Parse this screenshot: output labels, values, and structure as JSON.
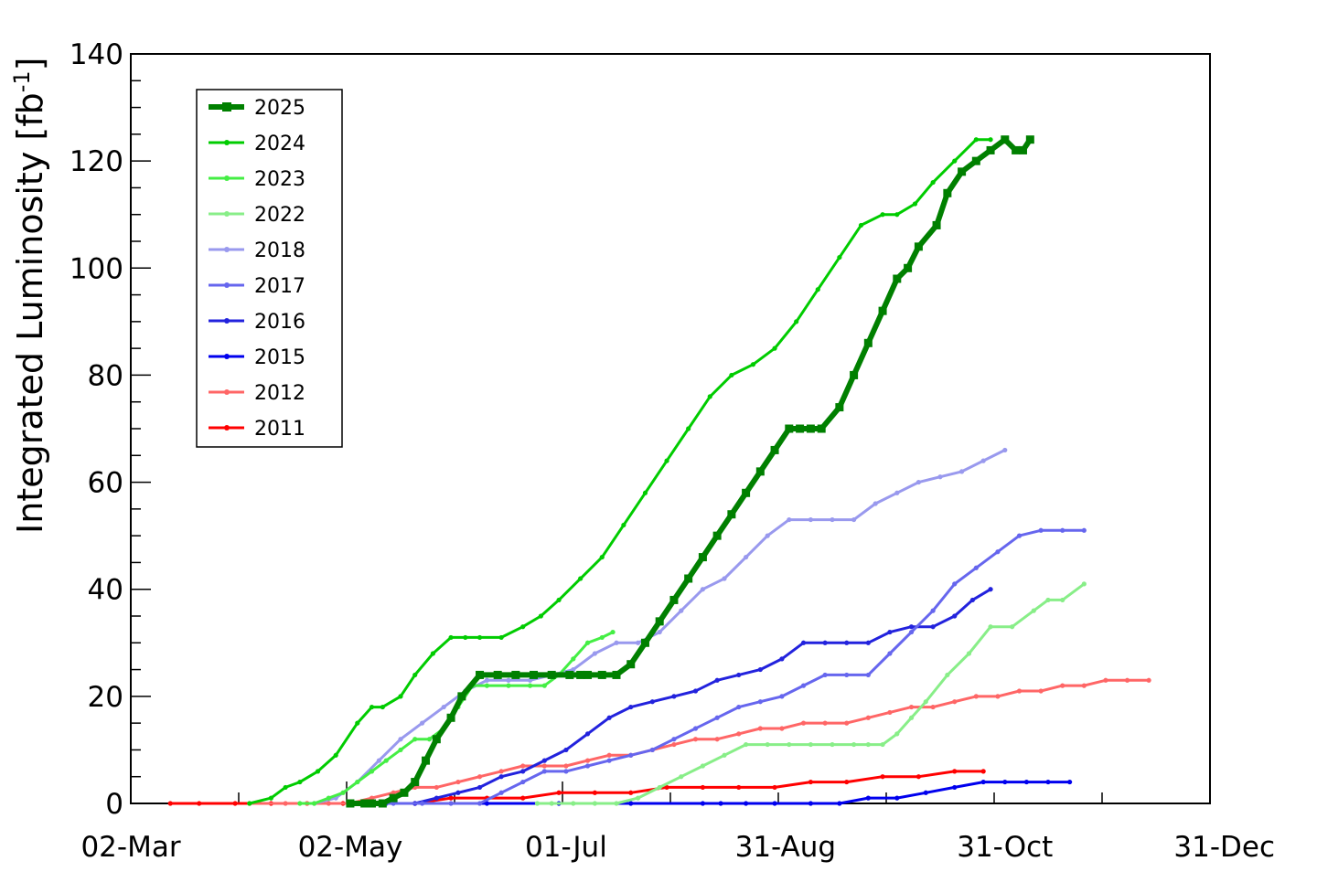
{
  "chart_data": {
    "type": "line",
    "title": "",
    "xlabel": "",
    "ylabel": "Integrated Luminosity [fb",
    "ylabel_sup": "-1",
    "ylabel_close": "]",
    "x_tick_labels": [
      "02-Mar",
      "02-May",
      "01-Jul",
      "31-Aug",
      "31-Oct",
      "31-Dec"
    ],
    "x_tick_days": [
      61,
      122,
      182,
      243,
      304,
      365
    ],
    "xlim_days": [
      61,
      361
    ],
    "y_tick_labels": [
      "0",
      "20",
      "40",
      "60",
      "80",
      "100",
      "120",
      "140"
    ],
    "ylim": [
      0,
      140
    ],
    "grid": false,
    "legend_position": "top-left",
    "series": [
      {
        "name": "2025",
        "color": "#008000",
        "width": 6,
        "x": [
          122,
          126,
          128,
          131,
          134,
          137,
          140,
          143,
          146,
          150,
          153,
          158,
          163,
          168,
          173,
          178,
          183,
          186,
          188,
          192,
          196,
          200,
          204,
          208,
          212,
          216,
          220,
          224,
          228,
          232,
          236,
          240,
          244,
          247,
          250,
          253,
          258,
          262,
          266,
          270,
          274,
          277,
          280,
          285,
          288,
          292,
          296,
          300,
          304,
          307,
          309,
          311
        ],
        "y": [
          0,
          0,
          0,
          0,
          1,
          2,
          4,
          8,
          12,
          16,
          20,
          24,
          24,
          24,
          24,
          24,
          24,
          24,
          24,
          24,
          24,
          26,
          30,
          34,
          38,
          42,
          46,
          50,
          54,
          58,
          62,
          66,
          70,
          70,
          70,
          70,
          74,
          80,
          86,
          92,
          98,
          100,
          104,
          108,
          114,
          118,
          120,
          122,
          124,
          122,
          122,
          124
        ]
      },
      {
        "name": "2024",
        "color": "#00cc00",
        "width": 3,
        "x": [
          94,
          100,
          104,
          108,
          113,
          118,
          124,
          128,
          131,
          136,
          140,
          145,
          150,
          154,
          158,
          164,
          170,
          175,
          180,
          186,
          192,
          198,
          204,
          210,
          216,
          222,
          228,
          234,
          240,
          246,
          252,
          258,
          264,
          270,
          274,
          279,
          284,
          290,
          296,
          300
        ],
        "y": [
          0,
          1,
          3,
          4,
          6,
          9,
          15,
          18,
          18,
          20,
          24,
          28,
          31,
          31,
          31,
          31,
          33,
          35,
          38,
          42,
          46,
          52,
          58,
          64,
          70,
          76,
          80,
          82,
          85,
          90,
          96,
          102,
          108,
          110,
          110,
          112,
          116,
          120,
          124,
          124
        ]
      },
      {
        "name": "2023",
        "color": "#44ee44",
        "width": 3,
        "x": [
          108,
          112,
          116,
          120,
          124,
          128,
          132,
          136,
          140,
          144,
          148,
          152,
          156,
          160,
          166,
          172,
          176,
          180,
          184,
          188,
          192,
          195
        ],
        "y": [
          0,
          0,
          1,
          2,
          4,
          6,
          8,
          10,
          12,
          12,
          14,
          18,
          22,
          22,
          22,
          22,
          22,
          24,
          27,
          30,
          31,
          32
        ]
      },
      {
        "name": "2022",
        "color": "#88ee88",
        "width": 3,
        "x": [
          174,
          178,
          184,
          190,
          196,
          202,
          208,
          214,
          220,
          226,
          232,
          238,
          244,
          250,
          256,
          262,
          266,
          270,
          274,
          278,
          282,
          288,
          294,
          300,
          306,
          312,
          316,
          320,
          326
        ],
        "y": [
          0,
          0,
          0,
          0,
          0,
          1,
          3,
          5,
          7,
          9,
          11,
          11,
          11,
          11,
          11,
          11,
          11,
          11,
          13,
          16,
          19,
          24,
          28,
          33,
          33,
          36,
          38,
          38,
          41
        ]
      },
      {
        "name": "2018",
        "color": "#9999ee",
        "width": 3,
        "x": [
          112,
          118,
          124,
          130,
          136,
          142,
          148,
          154,
          160,
          166,
          172,
          178,
          184,
          190,
          196,
          202,
          208,
          214,
          220,
          226,
          232,
          238,
          244,
          250,
          256,
          262,
          268,
          274,
          280,
          286,
          292,
          298,
          304
        ],
        "y": [
          0,
          1,
          4,
          8,
          12,
          15,
          18,
          21,
          23,
          23,
          23,
          24,
          25,
          28,
          30,
          30,
          32,
          36,
          40,
          42,
          46,
          50,
          53,
          53,
          53,
          53,
          56,
          58,
          60,
          61,
          62,
          64,
          66
        ]
      },
      {
        "name": "2017",
        "color": "#6666ee",
        "width": 3,
        "x": [
          126,
          134,
          142,
          150,
          158,
          164,
          170,
          176,
          182,
          188,
          194,
          200,
          206,
          212,
          218,
          224,
          230,
          236,
          242,
          248,
          254,
          260,
          266,
          272,
          278,
          284,
          290,
          296,
          302,
          308,
          314,
          320,
          326
        ],
        "y": [
          0,
          0,
          0,
          0,
          0,
          2,
          4,
          6,
          6,
          7,
          8,
          9,
          10,
          12,
          14,
          16,
          18,
          19,
          20,
          22,
          24,
          24,
          24,
          28,
          32,
          36,
          41,
          44,
          47,
          50,
          51,
          51,
          51
        ]
      },
      {
        "name": "2016",
        "color": "#2222dd",
        "width": 3,
        "x": [
          132,
          140,
          146,
          152,
          158,
          164,
          170,
          176,
          182,
          188,
          194,
          200,
          206,
          212,
          218,
          224,
          230,
          236,
          242,
          248,
          254,
          260,
          266,
          272,
          278,
          284,
          290,
          295,
          300
        ],
        "y": [
          0,
          0,
          1,
          2,
          3,
          5,
          6,
          8,
          10,
          13,
          16,
          18,
          19,
          20,
          21,
          23,
          24,
          25,
          27,
          30,
          30,
          30,
          30,
          32,
          33,
          33,
          35,
          38,
          40
        ]
      },
      {
        "name": "2015",
        "color": "#0000ee",
        "width": 3,
        "x": [
          122,
          140,
          160,
          180,
          200,
          220,
          225,
          232,
          240,
          250,
          258,
          266,
          274,
          282,
          290,
          298,
          304,
          310,
          316,
          322
        ],
        "y": [
          0,
          0,
          0,
          0,
          0,
          0,
          0,
          0,
          0,
          0,
          0,
          1,
          1,
          2,
          3,
          4,
          4,
          4,
          4,
          4
        ]
      },
      {
        "name": "2012",
        "color": "#ff6666",
        "width": 3,
        "x": [
          94,
          104,
          110,
          116,
          122,
          128,
          134,
          140,
          146,
          152,
          158,
          164,
          170,
          176,
          182,
          188,
          194,
          200,
          206,
          212,
          218,
          224,
          230,
          236,
          242,
          248,
          254,
          260,
          266,
          272,
          278,
          284,
          290,
          296,
          302,
          308,
          314,
          320,
          326,
          332,
          338,
          344
        ],
        "y": [
          0,
          0,
          0,
          0,
          0,
          1,
          2,
          3,
          3,
          4,
          5,
          6,
          7,
          7,
          7,
          8,
          9,
          9,
          10,
          11,
          12,
          12,
          13,
          14,
          14,
          15,
          15,
          15,
          16,
          17,
          18,
          18,
          19,
          20,
          20,
          21,
          21,
          22,
          22,
          23,
          23,
          23
        ]
      },
      {
        "name": "2011",
        "color": "#ff0000",
        "width": 3,
        "x": [
          72,
          80,
          90,
          100,
          110,
          120,
          130,
          140,
          150,
          160,
          170,
          180,
          190,
          200,
          210,
          220,
          230,
          240,
          250,
          260,
          270,
          280,
          290,
          298
        ],
        "y": [
          0,
          0,
          0,
          0,
          0,
          0,
          0,
          0,
          1,
          1,
          1,
          2,
          2,
          2,
          3,
          3,
          3,
          3,
          4,
          4,
          5,
          5,
          6,
          6
        ]
      }
    ]
  }
}
